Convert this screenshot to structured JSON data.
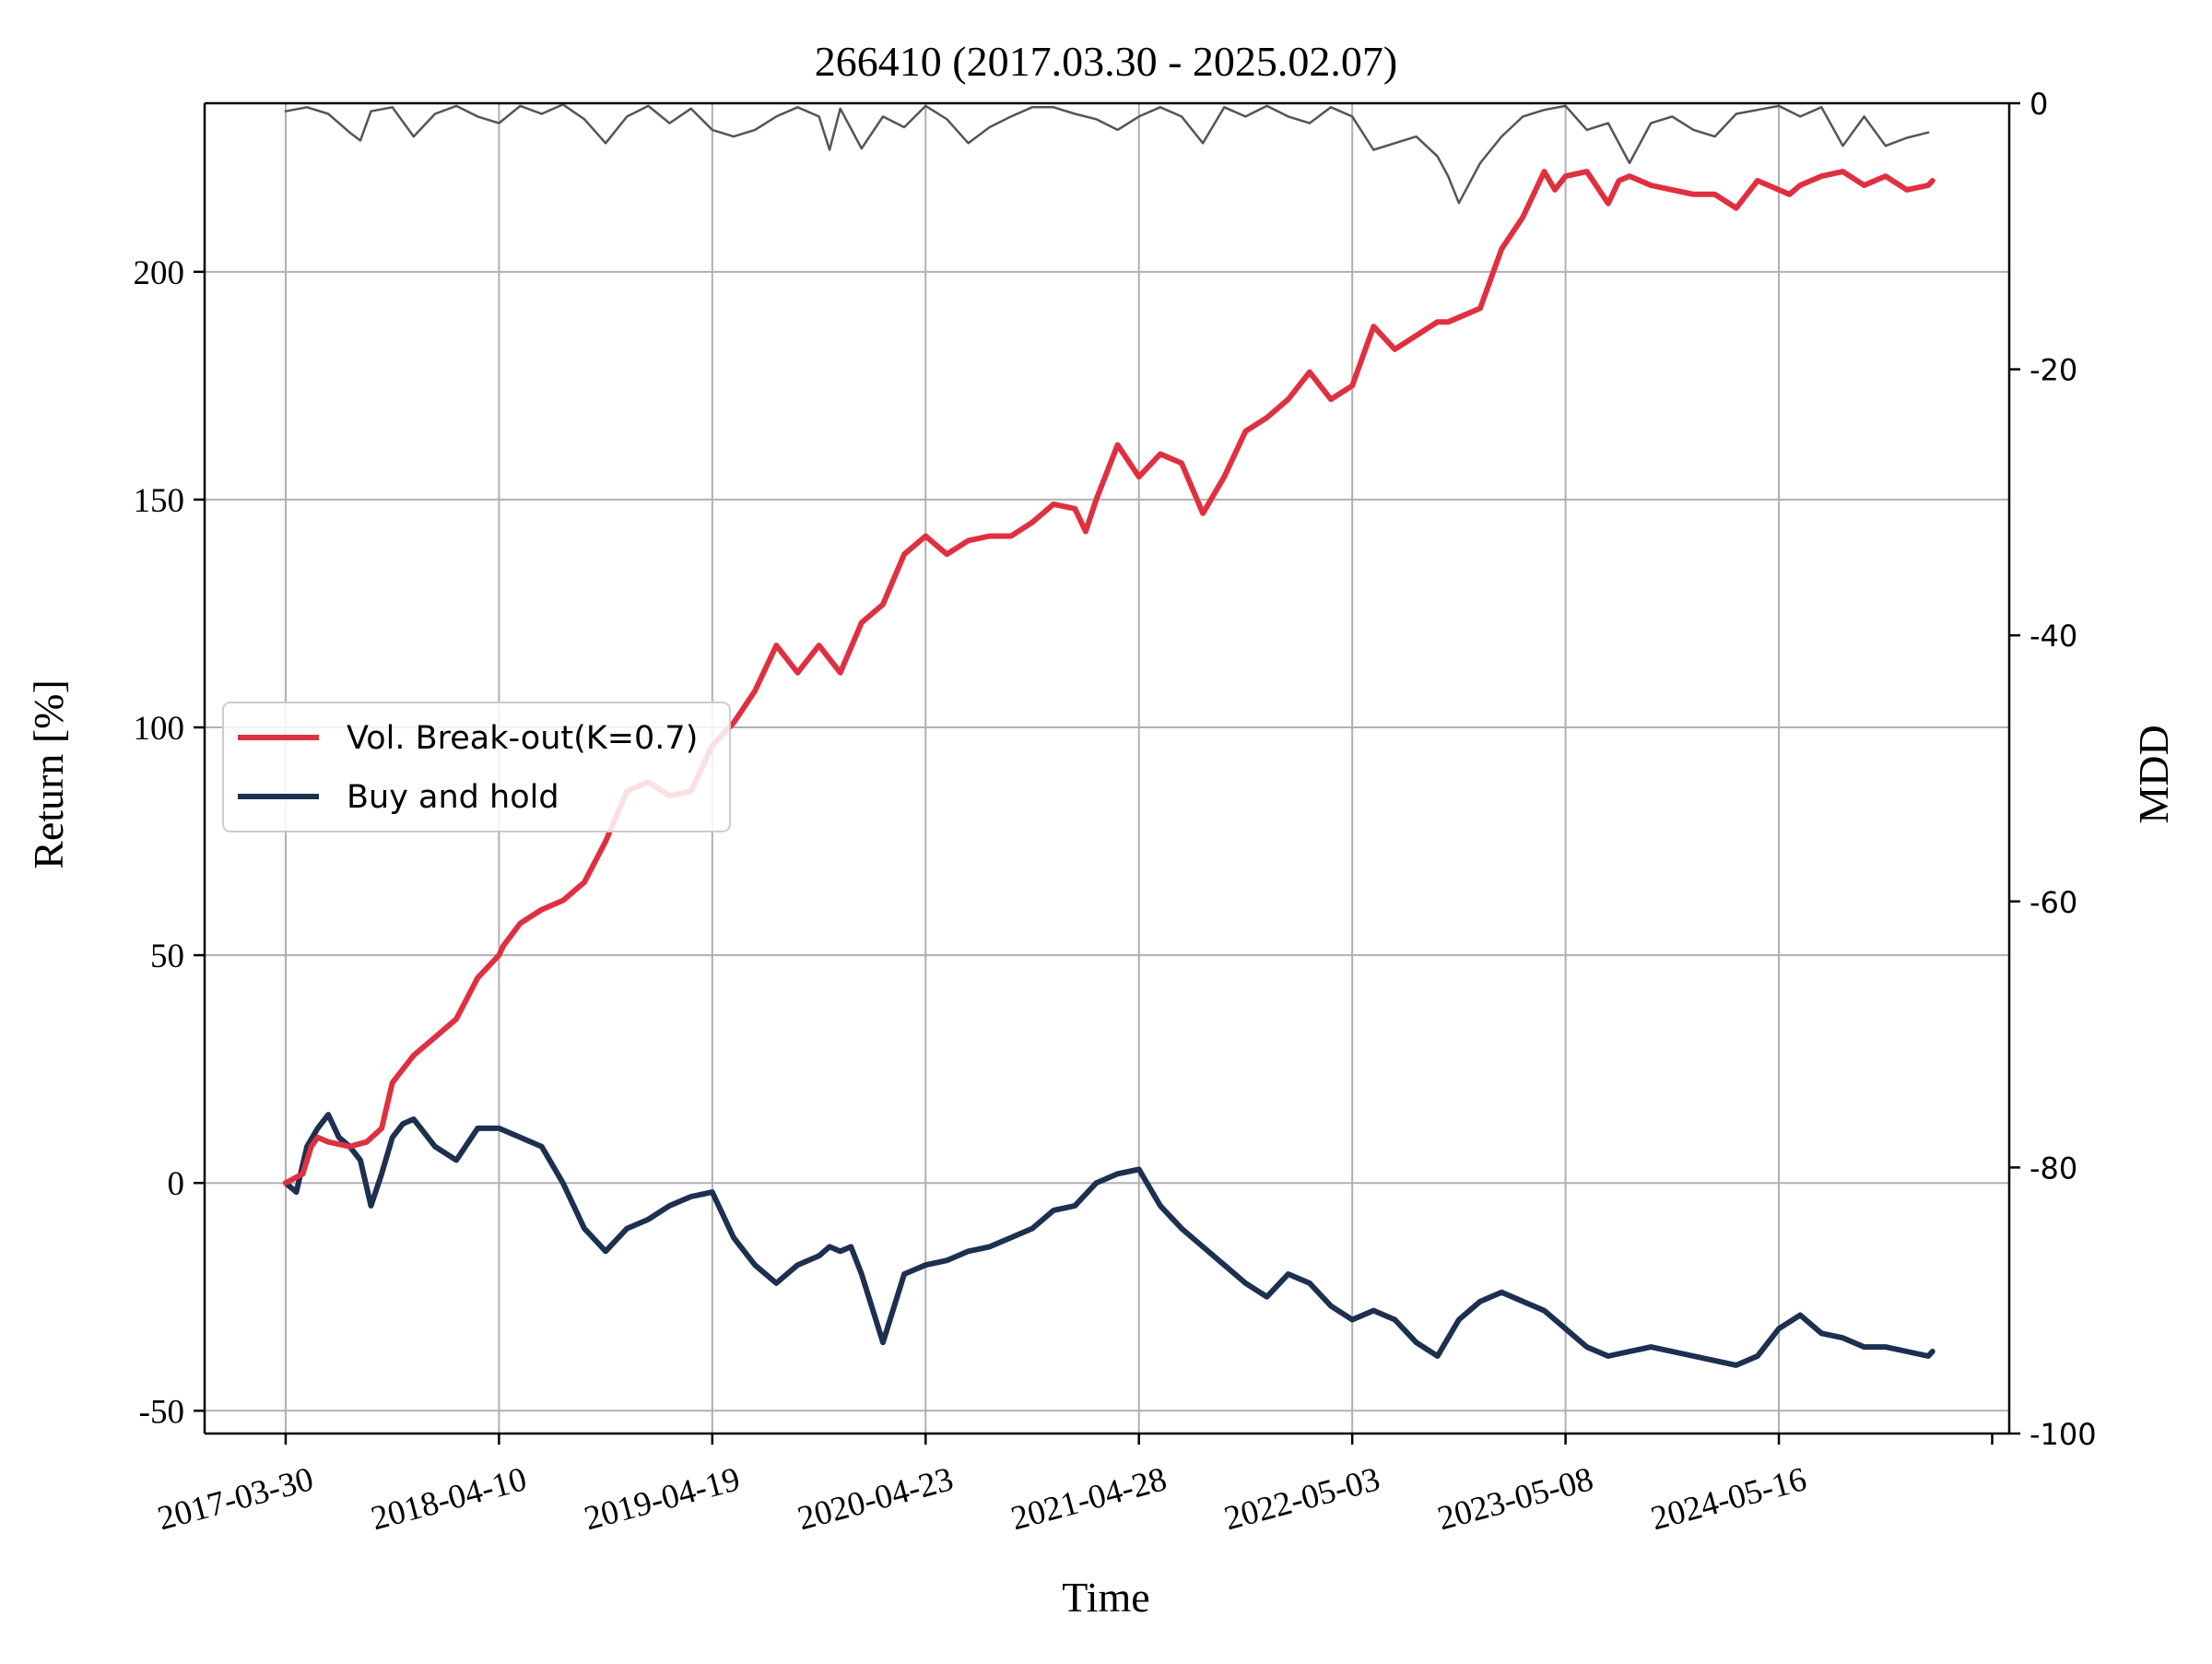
{
  "chart_data": {
    "type": "line",
    "title": "266410 (2017.03.30 - 2025.02.07)",
    "xlabel": "Time",
    "ylabel": "Return [%]",
    "y2label": "MDD",
    "x_tick_labels": [
      "2017-03-30",
      "2018-04-10",
      "2019-04-19",
      "2020-04-23",
      "2021-04-28",
      "2022-05-03",
      "2023-05-08",
      "2024-05-16"
    ],
    "x_tick_positions": [
      0,
      1,
      2,
      3,
      4,
      5,
      6,
      7
    ],
    "xlim": [
      -0.38,
      8.08
    ],
    "ylim": [
      -55,
      237
    ],
    "yticks": [
      -50,
      0,
      50,
      100,
      150,
      200
    ],
    "y2lim": [
      -100,
      0
    ],
    "y2ticks": [
      0,
      -20,
      -40,
      -60,
      -80,
      -100
    ],
    "grid": true,
    "legend_position": "center-left",
    "x_unit_note": "x positions are in years since 2017-03-30 (tick index)",
    "series": [
      {
        "name": "Vol. Break-out(K=0.7)",
        "axis": "left",
        "color": "#e03040",
        "x": [
          0,
          0.08,
          0.12,
          0.15,
          0.2,
          0.3,
          0.38,
          0.45,
          0.5,
          0.55,
          0.6,
          0.7,
          0.8,
          0.9,
          1.0,
          1.02,
          1.1,
          1.2,
          1.3,
          1.4,
          1.5,
          1.6,
          1.7,
          1.8,
          1.9,
          2.0,
          2.1,
          2.2,
          2.3,
          2.4,
          2.5,
          2.6,
          2.7,
          2.8,
          2.9,
          3.0,
          3.05,
          3.1,
          3.2,
          3.3,
          3.4,
          3.5,
          3.6,
          3.7,
          3.75,
          3.8,
          3.9,
          4.0,
          4.1,
          4.2,
          4.3,
          4.4,
          4.5,
          4.6,
          4.7,
          4.8,
          4.9,
          5.0,
          5.1,
          5.2,
          5.3,
          5.4,
          5.45,
          5.5,
          5.6,
          5.7,
          5.8,
          5.9,
          5.95,
          6.0,
          6.1,
          6.2,
          6.25,
          6.3,
          6.4,
          6.5,
          6.6,
          6.7,
          6.8,
          6.9,
          7.0,
          7.05,
          7.1,
          7.15,
          7.2,
          7.3,
          7.4,
          7.45,
          7.5,
          7.6,
          7.7,
          7.72
        ],
        "y": [
          0,
          2,
          8,
          10,
          9,
          8,
          9,
          12,
          22,
          25,
          28,
          32,
          36,
          45,
          50,
          52,
          57,
          60,
          62,
          66,
          75,
          86,
          88,
          85,
          86,
          96,
          101,
          108,
          118,
          112,
          118,
          112,
          123,
          127,
          138,
          142,
          140,
          138,
          141,
          142,
          142,
          145,
          149,
          148,
          143,
          150,
          162,
          155,
          160,
          158,
          147,
          155,
          165,
          168,
          172,
          178,
          172,
          175,
          188,
          183,
          186,
          189,
          189,
          190,
          192,
          205,
          212,
          222,
          218,
          221,
          222,
          215,
          220,
          221,
          219,
          218,
          217,
          217,
          214,
          220,
          218,
          217,
          219,
          220,
          221,
          222,
          219,
          220,
          221,
          218,
          219,
          220
        ],
        "display_y": [
          0,
          2,
          8,
          10,
          9,
          8,
          9,
          12,
          22,
          25,
          28,
          32,
          36,
          45,
          50,
          52,
          57,
          60,
          62,
          66,
          75,
          86,
          88,
          85,
          86,
          96,
          101,
          108,
          118,
          112,
          118,
          112,
          123,
          127,
          138,
          142,
          140,
          138,
          141,
          142,
          142,
          145,
          149,
          148,
          143,
          150,
          162,
          155,
          160,
          158,
          147,
          155,
          165,
          168,
          172,
          178,
          172,
          175,
          188,
          183,
          186,
          189,
          189,
          190,
          192,
          205,
          212,
          222,
          218,
          221,
          222,
          215,
          220,
          221,
          219,
          218,
          217,
          217,
          214,
          220,
          218,
          217,
          219,
          220,
          221,
          222,
          219,
          220,
          221,
          218,
          219,
          220
        ]
      },
      {
        "name": "Buy and hold",
        "axis": "left",
        "color": "#1e3050",
        "x": [
          0,
          0.05,
          0.1,
          0.15,
          0.2,
          0.25,
          0.3,
          0.35,
          0.4,
          0.45,
          0.5,
          0.55,
          0.6,
          0.7,
          0.8,
          0.9,
          1.0,
          1.1,
          1.2,
          1.3,
          1.4,
          1.5,
          1.6,
          1.7,
          1.8,
          1.9,
          2.0,
          2.1,
          2.2,
          2.3,
          2.4,
          2.5,
          2.55,
          2.6,
          2.65,
          2.7,
          2.8,
          2.9,
          3.0,
          3.1,
          3.2,
          3.3,
          3.4,
          3.5,
          3.6,
          3.7,
          3.8,
          3.9,
          4.0,
          4.1,
          4.2,
          4.3,
          4.4,
          4.5,
          4.6,
          4.7,
          4.8,
          4.9,
          5.0,
          5.1,
          5.2,
          5.3,
          5.4,
          5.5,
          5.6,
          5.7,
          5.8,
          5.9,
          6.0,
          6.1,
          6.2,
          6.3,
          6.4,
          6.5,
          6.6,
          6.7,
          6.8,
          6.9,
          7.0,
          7.1,
          7.2,
          7.3,
          7.4,
          7.5,
          7.6,
          7.7,
          7.72
        ],
        "y": [
          0,
          -2,
          8,
          12,
          15,
          10,
          8,
          5,
          -5,
          2,
          10,
          13,
          14,
          8,
          5,
          12,
          12,
          10,
          8,
          0,
          -10,
          -15,
          -10,
          -8,
          -5,
          -3,
          -2,
          -12,
          -18,
          -22,
          -18,
          -16,
          -14,
          -15,
          -14,
          -20,
          -35,
          -20,
          -18,
          -17,
          -15,
          -14,
          -12,
          -10,
          -6,
          -5,
          0,
          2,
          3,
          -5,
          -10,
          -14,
          -18,
          -22,
          -25,
          -20,
          -22,
          -27,
          -30,
          -28,
          -30,
          -35,
          -38,
          -30,
          -26,
          -24,
          -26,
          -28,
          -32,
          -36,
          -38,
          -37,
          -36,
          -37,
          -38,
          -39,
          -40,
          -38,
          -32,
          -29,
          -33,
          -34,
          -36,
          -36,
          -37,
          -38,
          -37
        ],
        "display_y": [
          0,
          -2,
          8,
          12,
          15,
          10,
          8,
          5,
          -5,
          2,
          10,
          13,
          14,
          8,
          5,
          12,
          12,
          10,
          8,
          0,
          -10,
          -15,
          -10,
          -8,
          -5,
          -3,
          -2,
          -12,
          -18,
          -22,
          -18,
          -16,
          -14,
          -15,
          -14,
          -20,
          -35,
          -20,
          -18,
          -17,
          -15,
          -14,
          -12,
          -10,
          -6,
          -5,
          0,
          2,
          3,
          -5,
          -10,
          -14,
          -18,
          -22,
          -25,
          -20,
          -22,
          -27,
          -30,
          -28,
          -30,
          -35,
          -38,
          -30,
          -26,
          -24,
          -26,
          -28,
          -32,
          -36,
          -38,
          -37,
          -36,
          -37,
          -38,
          -39,
          -40,
          -38,
          -32,
          -29,
          -33,
          -34,
          -36,
          -36,
          -37,
          -38,
          -37
        ]
      },
      {
        "name": "",
        "axis": "right",
        "color": "#555555",
        "x": [
          0,
          0.1,
          0.2,
          0.3,
          0.35,
          0.4,
          0.5,
          0.6,
          0.7,
          0.8,
          0.9,
          1.0,
          1.1,
          1.2,
          1.3,
          1.4,
          1.5,
          1.6,
          1.7,
          1.8,
          1.9,
          2.0,
          2.1,
          2.2,
          2.3,
          2.4,
          2.5,
          2.55,
          2.6,
          2.7,
          2.8,
          2.9,
          3.0,
          3.1,
          3.2,
          3.3,
          3.4,
          3.5,
          3.6,
          3.7,
          3.8,
          3.9,
          4.0,
          4.1,
          4.2,
          4.3,
          4.4,
          4.5,
          4.6,
          4.7,
          4.8,
          4.9,
          5.0,
          5.1,
          5.2,
          5.3,
          5.4,
          5.45,
          5.5,
          5.6,
          5.7,
          5.8,
          5.9,
          6.0,
          6.1,
          6.2,
          6.3,
          6.4,
          6.5,
          6.6,
          6.7,
          6.8,
          6.9,
          7.0,
          7.1,
          7.2,
          7.3,
          7.4,
          7.5,
          7.6,
          7.7
        ],
        "y": [
          -1,
          -0.5,
          -1,
          -1.5,
          -2,
          -1,
          -0.5,
          -1.5,
          -1,
          -0.5,
          -1,
          -1.2,
          -0.5,
          -1,
          -0.5,
          -1.2,
          -2,
          -1,
          -0.5,
          -1,
          -0.5,
          -1,
          -1.5,
          -2,
          -1,
          -0.5,
          -1,
          -3.5,
          -1,
          -2,
          -1,
          -1.5,
          -0.5,
          -1,
          -3,
          -1.5,
          -1,
          -0.5,
          -0.5,
          -1,
          -1,
          -2,
          -1,
          -0.5,
          -1,
          -2,
          -0.5,
          -1,
          -0.5,
          -1,
          -1.5,
          -0.5,
          -1,
          -2.5,
          -2,
          -1.5,
          -3,
          -4,
          -7,
          -4,
          -2,
          -1,
          -1,
          -0.5,
          -2,
          -1.5,
          -3,
          -1.2,
          -1,
          -1.5,
          -2,
          -1,
          -1,
          -0.5,
          -1,
          -0.5,
          -2,
          -1,
          -2,
          -2,
          -2
        ],
        "display_y": [
          -0.6,
          -0.3,
          -0.8,
          -2.2,
          -2.8,
          -0.6,
          -0.3,
          -2.5,
          -0.8,
          -0.2,
          -1.0,
          -1.5,
          -0.2,
          -0.8,
          -0.1,
          -1.2,
          -3.0,
          -1.0,
          -0.2,
          -1.5,
          -0.4,
          -2.0,
          -2.5,
          -2.0,
          -1.0,
          -0.3,
          -1.0,
          -3.5,
          -0.4,
          -3.4,
          -1.0,
          -1.8,
          -0.2,
          -1.2,
          -3.0,
          -1.8,
          -1.0,
          -0.3,
          -0.3,
          -0.8,
          -1.2,
          -2.0,
          -1.0,
          -0.3,
          -1.0,
          -3.0,
          -0.3,
          -1.0,
          -0.2,
          -1.0,
          -1.5,
          -0.3,
          -1.0,
          -3.5,
          -3.0,
          -2.5,
          -4.0,
          -5.5,
          -7.5,
          -4.5,
          -2.5,
          -1.0,
          -0.5,
          -0.2,
          -2.0,
          -1.5,
          -4.5,
          -1.5,
          -1.0,
          -2.0,
          -2.5,
          -0.8,
          -0.5,
          -0.2,
          -1.0,
          -0.3,
          -3.2,
          -1.0,
          -3.2,
          -2.6,
          -2.2
        ]
      }
    ]
  }
}
